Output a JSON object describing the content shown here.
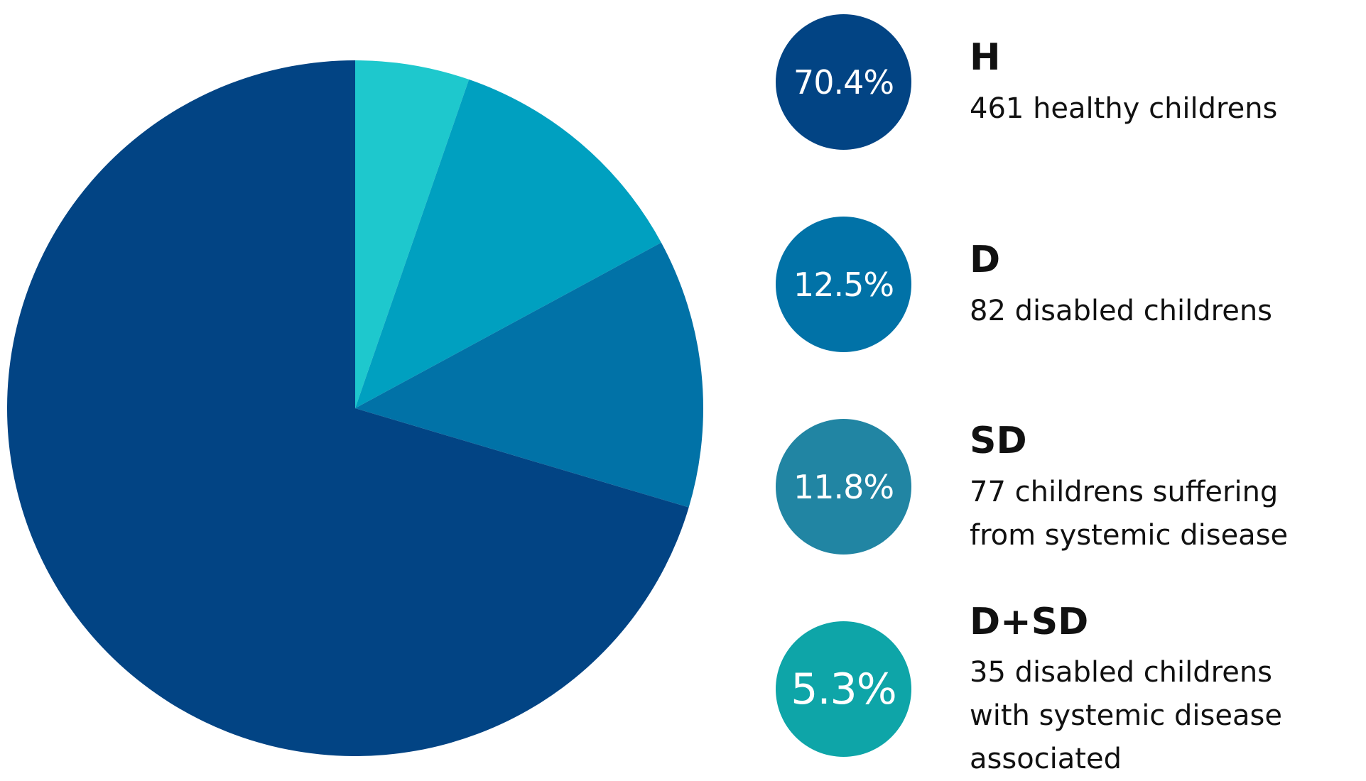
{
  "chart_data": {
    "type": "pie",
    "slices": [
      {
        "label": "H",
        "value": 70.4,
        "display": "70.4%",
        "description": [
          "461 healthy childrens"
        ],
        "color": "#024484"
      },
      {
        "label": "D",
        "value": 12.5,
        "display": "12.5%",
        "description": [
          "82 disabled childrens"
        ],
        "color": "#0172A7"
      },
      {
        "label": "SD",
        "value": 11.8,
        "display": "11.8%",
        "description": [
          "77 childrens suffering",
          "from systemic disease"
        ],
        "color": "#00A0C0"
      },
      {
        "label": "D+SD",
        "value": 5.3,
        "display": "5.3%",
        "description": [
          "35 disabled childrens",
          "with systemic disease",
          "associated"
        ],
        "color": "#1EC8CD"
      }
    ],
    "bubble_colors": [
      "#024484",
      "#0172A7",
      "#2185A3",
      "#0EA5A8"
    ],
    "start_angle_deg": 0,
    "direction": "clockwise"
  }
}
